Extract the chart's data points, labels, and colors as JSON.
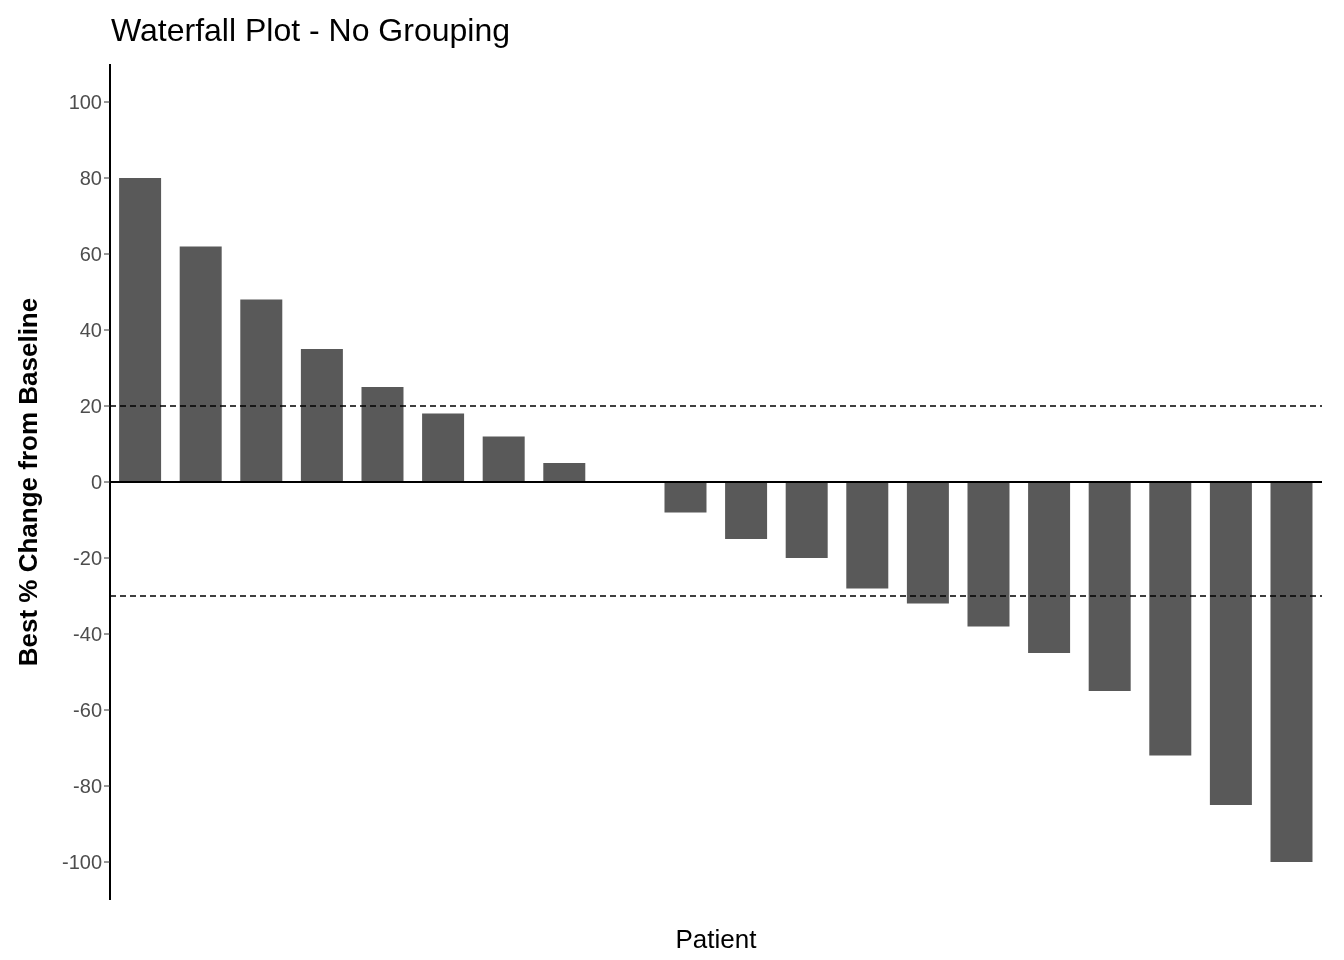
{
  "chart_data": {
    "type": "bar",
    "title": "Waterfall Plot - No Grouping",
    "xlabel": "Patient",
    "ylabel": "Best % Change from Baseline",
    "categories": [
      null,
      null,
      null,
      null,
      null,
      null,
      null,
      null,
      null,
      null,
      null,
      null,
      null,
      null,
      null,
      null,
      null,
      null,
      null,
      null
    ],
    "values": [
      80,
      62,
      48,
      35,
      25,
      18,
      12,
      5,
      0,
      -8,
      -15,
      -20,
      -28,
      -32,
      -38,
      -45,
      -55,
      -72,
      -85,
      -100
    ],
    "color": "#595959",
    "ylim": [
      -110,
      110
    ],
    "yticks": [
      -100,
      -80,
      -60,
      -40,
      -20,
      0,
      20,
      40,
      60,
      80,
      100
    ],
    "ref_lines": [
      {
        "axis": "y",
        "value": 0,
        "line_style": "solid",
        "color": "#000000"
      },
      {
        "axis": "y",
        "value": 20,
        "line_style": "dashed",
        "color": "#000000"
      },
      {
        "axis": "y",
        "value": -30,
        "line_style": "dashed",
        "color": "#000000"
      }
    ]
  }
}
